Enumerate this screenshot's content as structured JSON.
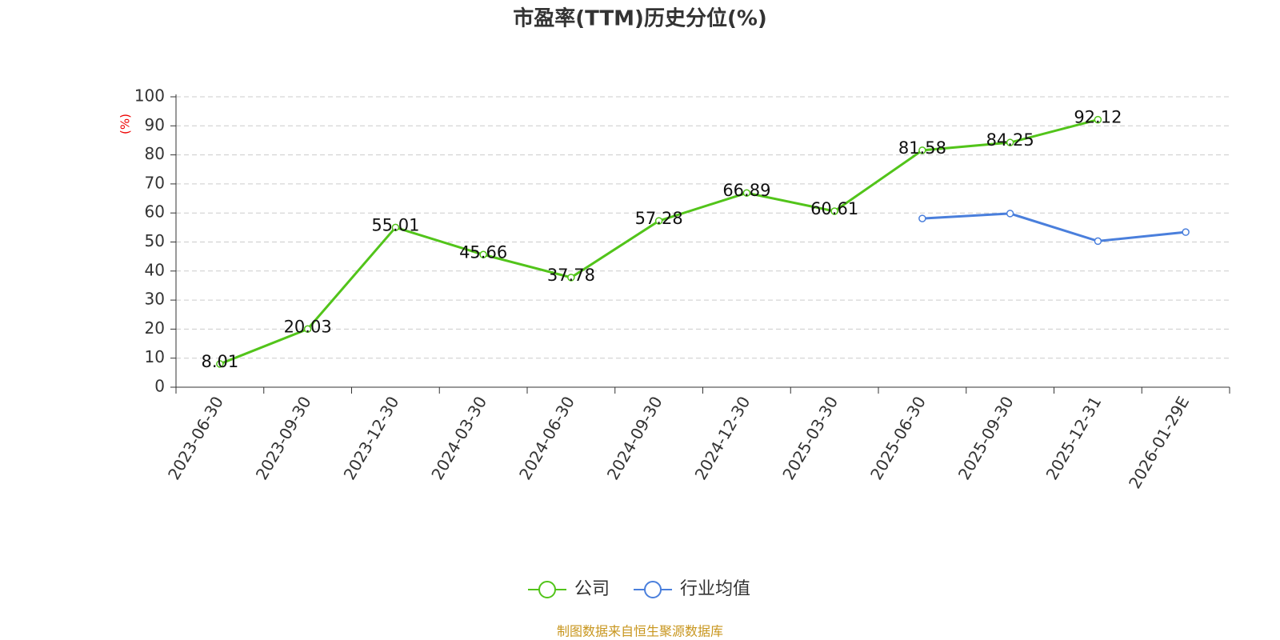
{
  "chart_data": {
    "type": "line",
    "title": "市盈率(TTM)历史分位(%)",
    "y_label": "(%)",
    "categories": [
      "2023-06-30",
      "2023-09-30",
      "2023-12-30",
      "2024-03-30",
      "2024-06-30",
      "2024-09-30",
      "2024-12-30",
      "2025-03-30",
      "2025-06-30",
      "2025-09-30",
      "2025-12-31",
      "2026-01-29E"
    ],
    "series": [
      {
        "name": "公司",
        "color": "#52c41a",
        "data_labels": true,
        "values": [
          8.01,
          20.03,
          55.01,
          45.66,
          37.78,
          57.28,
          66.89,
          60.61,
          81.58,
          84.25,
          92.12,
          null
        ]
      },
      {
        "name": "行业均值",
        "color": "#4a7fdc",
        "data_labels": false,
        "values": [
          null,
          null,
          null,
          null,
          null,
          null,
          null,
          null,
          58.1,
          59.8,
          50.3,
          53.4
        ]
      }
    ],
    "ylim": [
      0,
      100
    ],
    "yticks": [
      0,
      10,
      20,
      30,
      40,
      50,
      60,
      70,
      80,
      90,
      100
    ],
    "grid": true,
    "legend": "bottom",
    "source": "制图数据来自恒生聚源数据库"
  }
}
